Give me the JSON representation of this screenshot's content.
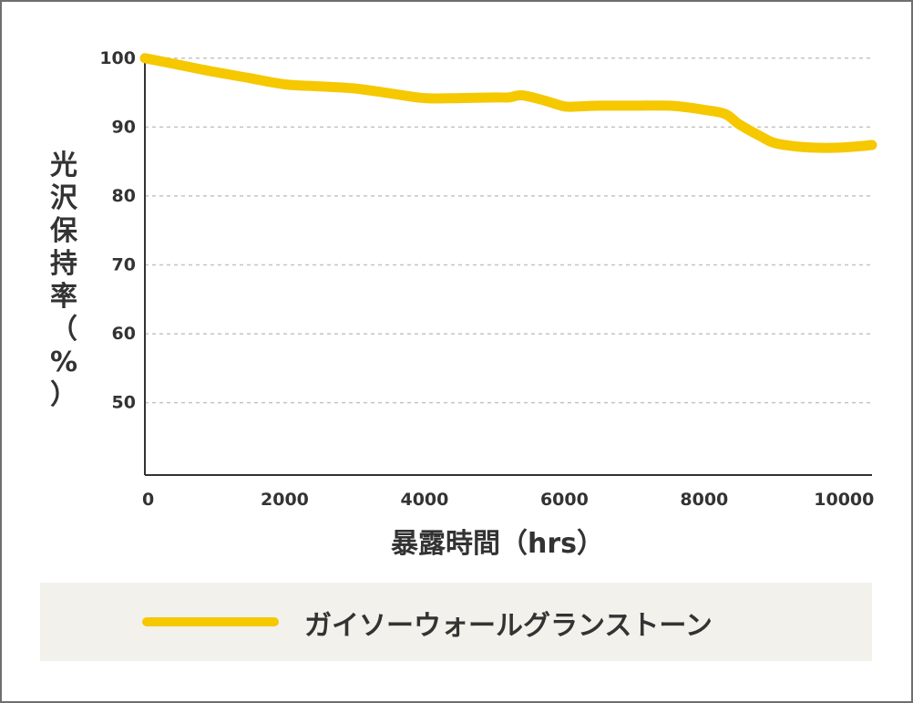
{
  "chart_data": {
    "type": "line",
    "xlabel": "暴露時間（hrs）",
    "ylabel": "光沢保持率（%）",
    "xlim": [
      0,
      10400
    ],
    "ylim": [
      39.5,
      100.5
    ],
    "x_ticks": [
      0,
      2000,
      4000,
      6000,
      8000,
      10000
    ],
    "x_tick_labels": [
      "0",
      "2000",
      "4000",
      "6000",
      "8000",
      "10000"
    ],
    "y_ticks": [
      100,
      90,
      80,
      70,
      60,
      50
    ],
    "y_tick_labels": [
      "100",
      "90",
      "80",
      "70",
      "60",
      "50"
    ],
    "grid": true,
    "legend_position": "bottom",
    "series": [
      {
        "name": "ガイソーウォールグランストーン",
        "color": "#f5c800",
        "x": [
          0,
          500,
          1000,
          1500,
          2000,
          2500,
          3000,
          3500,
          4000,
          4500,
          5000,
          5200,
          5400,
          5700,
          6000,
          6200,
          6500,
          7000,
          7500,
          7800,
          8000,
          8300,
          8500,
          8800,
          9000,
          9300,
          9600,
          9900,
          10200,
          10400
        ],
        "y": [
          100,
          99,
          98,
          97.1,
          96.2,
          95.9,
          95.6,
          94.9,
          94.2,
          94.2,
          94.3,
          94.3,
          94.6,
          93.9,
          93,
          93,
          93.1,
          93.1,
          93.1,
          92.8,
          92.5,
          91.9,
          90.4,
          88.7,
          87.7,
          87.2,
          87,
          87,
          87.2,
          87.4
        ]
      }
    ]
  }
}
